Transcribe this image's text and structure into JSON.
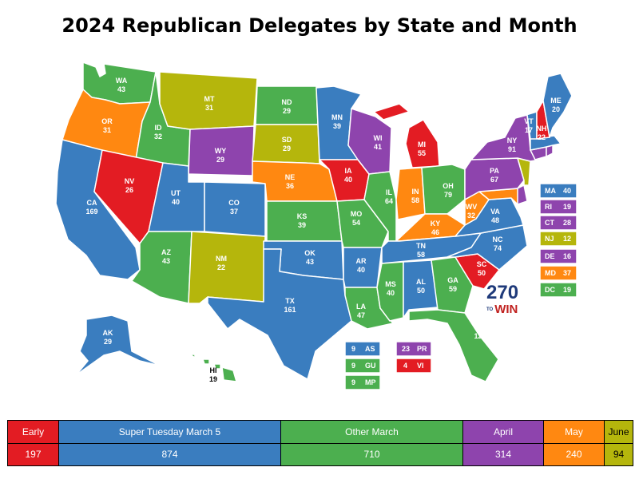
{
  "title": "2024 Republican Delegates by State and Month",
  "colors": {
    "early": "#e31c23",
    "super_tuesday": "#3a7dbf",
    "other_march": "#4caf4f",
    "april": "#8e44ad",
    "may": "#ff8811",
    "june": "#b5b60c"
  },
  "states": [
    {
      "abbr": "WA",
      "value": "43"
    },
    {
      "abbr": "OR",
      "value": "31"
    },
    {
      "abbr": "CA",
      "value": "169"
    },
    {
      "abbr": "ID",
      "value": "32"
    },
    {
      "abbr": "NV",
      "value": "26"
    },
    {
      "abbr": "MT",
      "value": "31"
    },
    {
      "abbr": "WY",
      "value": "29"
    },
    {
      "abbr": "UT",
      "value": "40"
    },
    {
      "abbr": "AZ",
      "value": "43"
    },
    {
      "abbr": "CO",
      "value": "37"
    },
    {
      "abbr": "NM",
      "value": "22"
    },
    {
      "abbr": "ND",
      "value": "29"
    },
    {
      "abbr": "SD",
      "value": "29"
    },
    {
      "abbr": "NE",
      "value": "36"
    },
    {
      "abbr": "KS",
      "value": "39"
    },
    {
      "abbr": "OK",
      "value": "43"
    },
    {
      "abbr": "TX",
      "value": "161"
    },
    {
      "abbr": "MN",
      "value": "39"
    },
    {
      "abbr": "IA",
      "value": "40"
    },
    {
      "abbr": "MO",
      "value": "54"
    },
    {
      "abbr": "AR",
      "value": "40"
    },
    {
      "abbr": "LA",
      "value": "47"
    },
    {
      "abbr": "WI",
      "value": "41"
    },
    {
      "abbr": "IL",
      "value": "64"
    },
    {
      "abbr": "MI",
      "value": "55"
    },
    {
      "abbr": "IN",
      "value": "58"
    },
    {
      "abbr": "OH",
      "value": "79"
    },
    {
      "abbr": "KY",
      "value": "46"
    },
    {
      "abbr": "TN",
      "value": "58"
    },
    {
      "abbr": "MS",
      "value": "40"
    },
    {
      "abbr": "AL",
      "value": "50"
    },
    {
      "abbr": "GA",
      "value": "59"
    },
    {
      "abbr": "FL",
      "value": "125"
    },
    {
      "abbr": "SC",
      "value": "50"
    },
    {
      "abbr": "NC",
      "value": "74"
    },
    {
      "abbr": "VA",
      "value": "48"
    },
    {
      "abbr": "WV",
      "value": "32"
    },
    {
      "abbr": "PA",
      "value": "67"
    },
    {
      "abbr": "NY",
      "value": "91"
    },
    {
      "abbr": "VT",
      "value": "17"
    },
    {
      "abbr": "NH",
      "value": "22"
    },
    {
      "abbr": "ME",
      "value": "20"
    },
    {
      "abbr": "AK",
      "value": "29"
    },
    {
      "abbr": "HI",
      "value": "19"
    }
  ],
  "small_states": [
    {
      "abbr": "MA",
      "value": "40"
    },
    {
      "abbr": "RI",
      "value": "19"
    },
    {
      "abbr": "CT",
      "value": "28"
    },
    {
      "abbr": "NJ",
      "value": "12"
    },
    {
      "abbr": "DE",
      "value": "16"
    },
    {
      "abbr": "MD",
      "value": "37"
    },
    {
      "abbr": "DC",
      "value": "19"
    }
  ],
  "territories": [
    {
      "abbr": "AS",
      "value": "9"
    },
    {
      "abbr": "GU",
      "value": "9"
    },
    {
      "abbr": "MP",
      "value": "9"
    },
    {
      "abbr": "PR",
      "value": "23"
    },
    {
      "abbr": "VI",
      "value": "4"
    }
  ],
  "logo": {
    "number": "270",
    "to": "TO",
    "win": "WIN"
  },
  "totals": [
    {
      "label": "Early",
      "value": "197"
    },
    {
      "label": "Super Tuesday March 5",
      "value": "874"
    },
    {
      "label": "Other March",
      "value": "710"
    },
    {
      "label": "April",
      "value": "314"
    },
    {
      "label": "May",
      "value": "240"
    },
    {
      "label": "June",
      "value": "94"
    }
  ]
}
